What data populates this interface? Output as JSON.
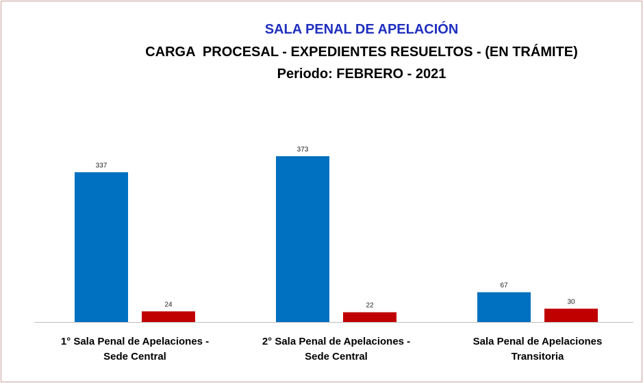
{
  "chart_data": {
    "type": "bar",
    "title": "SALA PENAL DE APELACIÓN",
    "subtitle": [
      "CARGA  PROCESAL - EXPEDIENTES RESUELTOS - (EN TRÁMITE)",
      "Periodo: FEBRERO - 2021"
    ],
    "categories": [
      [
        "1° Sala Penal de Apelaciones -",
        "Sede Central"
      ],
      [
        "2° Sala Penal de Apelaciones -",
        "Sede Central"
      ],
      [
        "Sala Penal de Apelaciones",
        "Transitoria"
      ]
    ],
    "series": [
      {
        "color": "#0070c0",
        "values": [
          337,
          373,
          67
        ]
      },
      {
        "color": "#c00000",
        "values": [
          24,
          22,
          30
        ]
      }
    ]
  }
}
